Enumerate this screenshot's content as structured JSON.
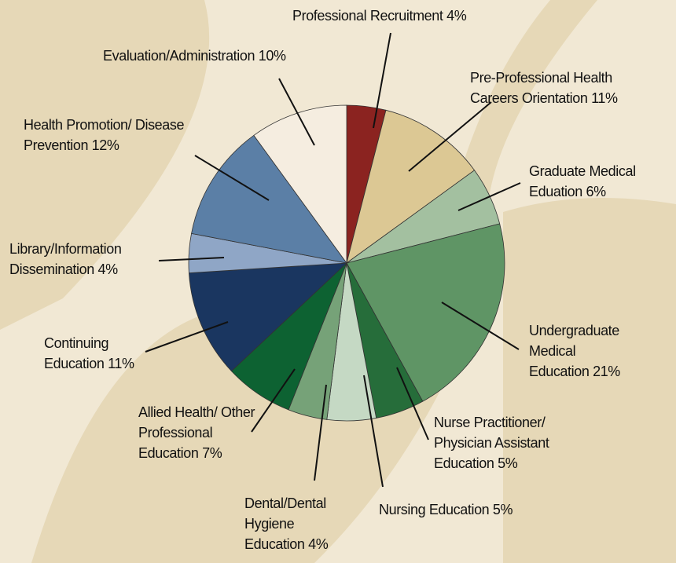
{
  "chart_data": {
    "type": "pie",
    "categories": [
      "Professional Recruitment",
      "Pre-Professional Health Careers Orientation",
      "Graduate Medical Eduation",
      "Undergraduate Medical Education",
      "Nurse Practitioner/ Physician Assistant Education",
      "Nursing Education",
      "Dental/Dental Hygiene Education",
      "Allied Health/ Other Professional Education",
      "Continuing Education",
      "Library/Information Dissemination",
      "Health Promotion/ Disease Prevention",
      "Evaluation/Administration"
    ],
    "values": [
      4,
      11,
      6,
      21,
      5,
      5,
      4,
      7,
      11,
      4,
      12,
      10
    ],
    "value_labels": [
      "4%",
      "11%",
      "6%",
      "21%",
      "5%",
      "5%",
      "4%",
      "7%",
      "11%",
      "4%",
      "12%",
      "10%"
    ],
    "colors": [
      "#8b2320",
      "#dcc894",
      "#a3c0a0",
      "#5f9565",
      "#266d3a",
      "#c5d9c4",
      "#76a278",
      "#0d6232",
      "#1a3660",
      "#8fa6c6",
      "#5b7fa6",
      "#f5ede0"
    ]
  }
}
